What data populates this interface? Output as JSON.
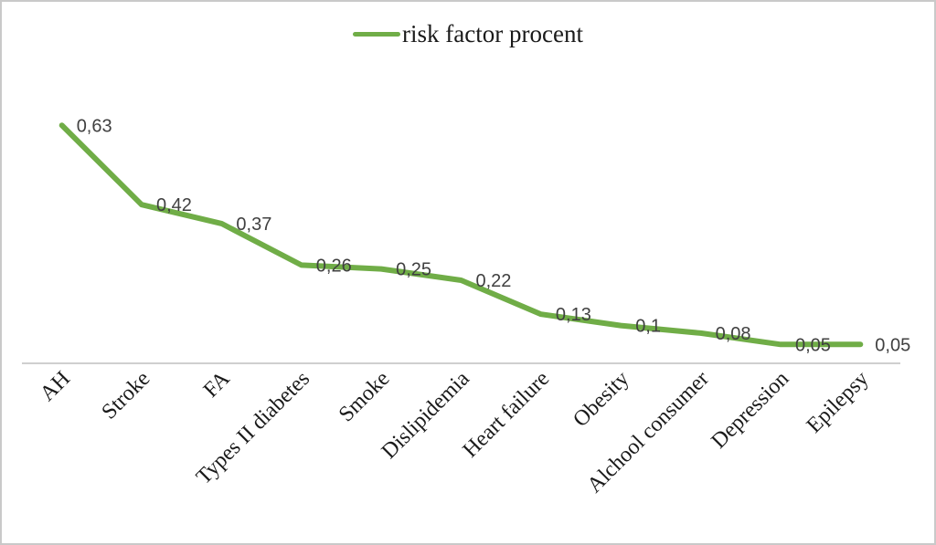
{
  "legend": {
    "label": "risk factor procent"
  },
  "colors": {
    "series_line": "#70ad47",
    "axis_line": "#bfbfbf",
    "data_label": "#404040",
    "category_label": "#1a1a1a",
    "frame_border": "#c9c9c9"
  },
  "chart_data": {
    "type": "line",
    "title": "risk factor procent",
    "categories": [
      "AH",
      "Stroke",
      "FA",
      "Types II diabetes",
      "Smoke",
      "Dislipidemia",
      "Heart failure",
      "Obesity",
      "Alchool consumer",
      "Depression",
      "Epilepsy"
    ],
    "series": [
      {
        "name": "risk factor procent",
        "values": [
          0.63,
          0.42,
          0.37,
          0.26,
          0.25,
          0.22,
          0.13,
          0.1,
          0.08,
          0.05,
          0.05
        ],
        "data_labels": [
          "0,63",
          "0,42",
          "0,37",
          "0,26",
          "0,25",
          "0,22",
          "0,13",
          "0,1",
          "0,08",
          "0,05",
          "0,05"
        ],
        "color": "#70ad47"
      }
    ],
    "xlabel": "",
    "ylabel": "",
    "ylim": [
      0,
      0.7
    ],
    "grid": false,
    "legend_position": "top",
    "x_tick_rotation_deg": 45,
    "data_labels_shown": true
  }
}
